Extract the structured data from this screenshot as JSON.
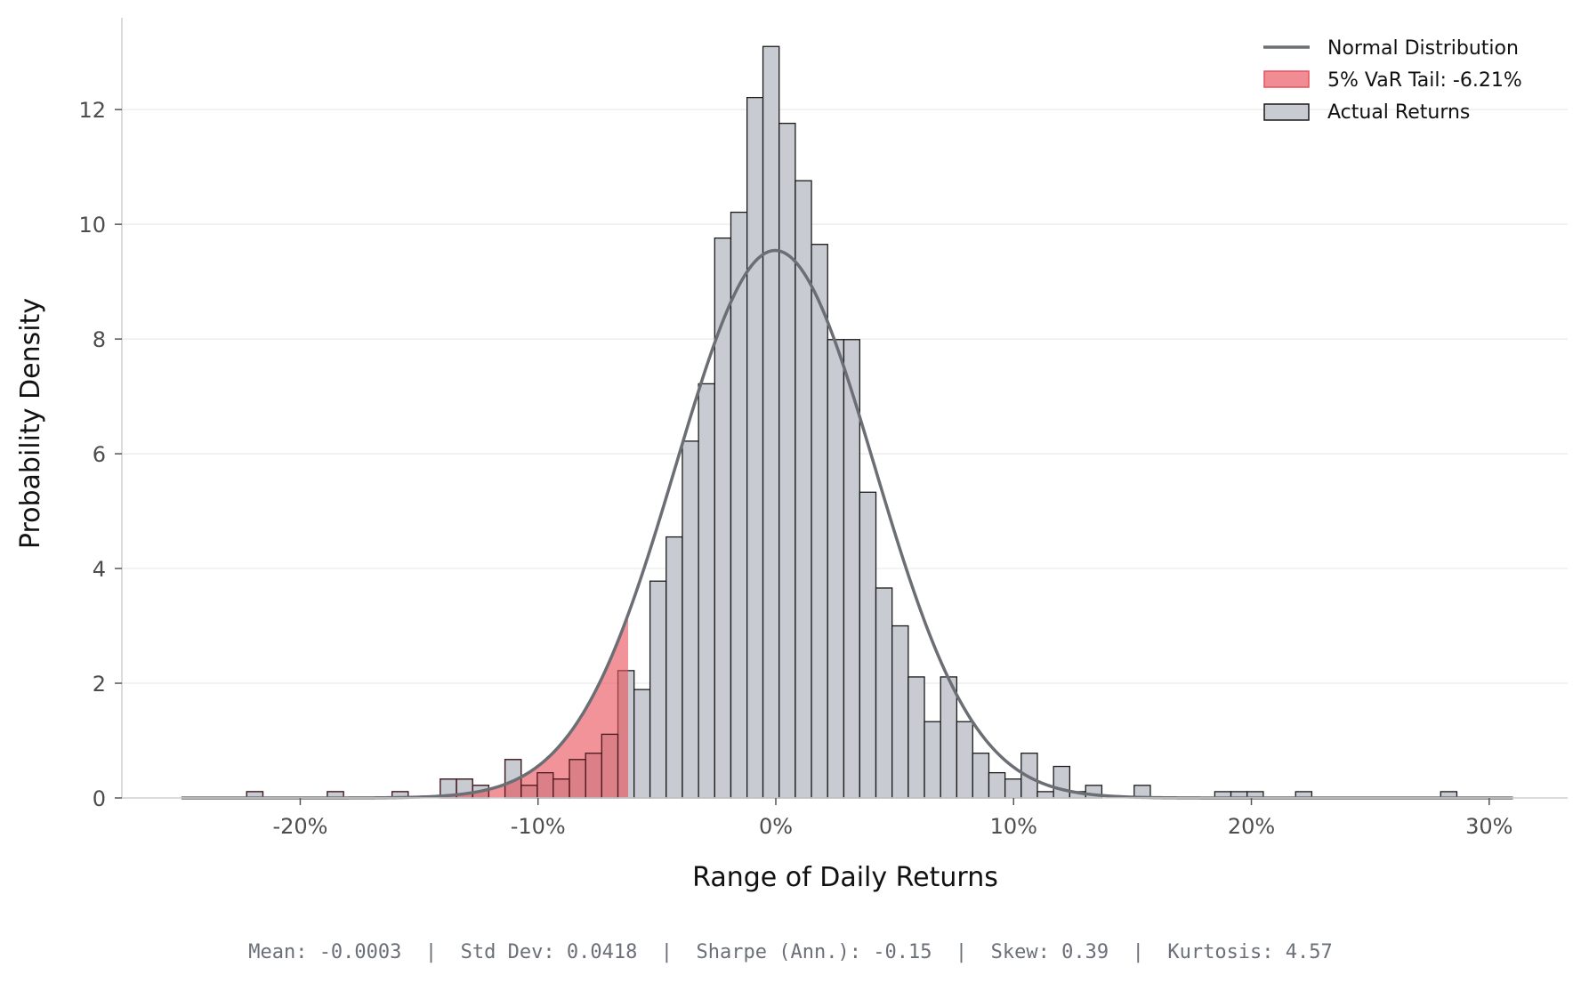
{
  "chart_data": {
    "type": "bar",
    "title": "",
    "xlabel": "Range of Daily Returns",
    "ylabel": "Probability Density",
    "xlim": [
      -0.275,
      0.333
    ],
    "ylim": [
      0,
      13.6
    ],
    "x_ticks": [
      -0.2,
      -0.1,
      0,
      0.1,
      0.2,
      0.3
    ],
    "x_tick_labels": [
      "-20%",
      "-10%",
      "0%",
      "10%",
      "20%",
      "30%"
    ],
    "y_ticks": [
      0,
      2,
      4,
      6,
      8,
      10,
      12
    ],
    "y_tick_labels": [
      "0",
      "2",
      "4",
      "6",
      "8",
      "10",
      "12"
    ],
    "grid": "horizontal",
    "legend_position": "top-right",
    "histogram": {
      "name": "Actual Returns",
      "color": "#c8ccd2",
      "edge_color": "#1a1a1a",
      "bins": [
        {
          "x0": -0.2225,
          "x1": -0.2157,
          "density": 0.11
        },
        {
          "x0": -0.1886,
          "x1": -0.1818,
          "density": 0.11
        },
        {
          "x0": -0.1614,
          "x1": -0.1546,
          "density": 0.11
        },
        {
          "x0": -0.1411,
          "x1": -0.1343,
          "density": 0.33
        },
        {
          "x0": -0.1343,
          "x1": -0.1275,
          "density": 0.33
        },
        {
          "x0": -0.1275,
          "x1": -0.1207,
          "density": 0.22
        },
        {
          "x0": -0.1139,
          "x1": -0.1071,
          "density": 0.67
        },
        {
          "x0": -0.1071,
          "x1": -0.1003,
          "density": 0.22
        },
        {
          "x0": -0.1003,
          "x1": -0.0936,
          "density": 0.44
        },
        {
          "x0": -0.0936,
          "x1": -0.0868,
          "density": 0.33
        },
        {
          "x0": -0.0868,
          "x1": -0.08,
          "density": 0.67
        },
        {
          "x0": -0.08,
          "x1": -0.0732,
          "density": 0.78
        },
        {
          "x0": -0.0732,
          "x1": -0.0664,
          "density": 1.11
        },
        {
          "x0": -0.0664,
          "x1": -0.0596,
          "density": 2.22
        },
        {
          "x0": -0.0596,
          "x1": -0.0529,
          "density": 1.89
        },
        {
          "x0": -0.0529,
          "x1": -0.0461,
          "density": 3.78
        },
        {
          "x0": -0.0461,
          "x1": -0.0393,
          "density": 4.55
        },
        {
          "x0": -0.0393,
          "x1": -0.0325,
          "density": 6.22
        },
        {
          "x0": -0.0325,
          "x1": -0.0257,
          "density": 7.22
        },
        {
          "x0": -0.0257,
          "x1": -0.0189,
          "density": 9.76
        },
        {
          "x0": -0.0189,
          "x1": -0.0121,
          "density": 10.21
        },
        {
          "x0": -0.0121,
          "x1": -0.0054,
          "density": 12.21
        },
        {
          "x0": -0.0054,
          "x1": 0.0014,
          "density": 13.1
        },
        {
          "x0": 0.0014,
          "x1": 0.0082,
          "density": 11.76
        },
        {
          "x0": 0.0082,
          "x1": 0.015,
          "density": 10.76
        },
        {
          "x0": 0.015,
          "x1": 0.0218,
          "density": 9.65
        },
        {
          "x0": 0.0218,
          "x1": 0.0286,
          "density": 7.99
        },
        {
          "x0": 0.0286,
          "x1": 0.0353,
          "density": 7.99
        },
        {
          "x0": 0.0353,
          "x1": 0.0421,
          "density": 5.33
        },
        {
          "x0": 0.0421,
          "x1": 0.0489,
          "density": 3.66
        },
        {
          "x0": 0.0489,
          "x1": 0.0557,
          "density": 3.0
        },
        {
          "x0": 0.0557,
          "x1": 0.0625,
          "density": 2.11
        },
        {
          "x0": 0.0625,
          "x1": 0.0693,
          "density": 1.33
        },
        {
          "x0": 0.0693,
          "x1": 0.0761,
          "density": 2.11
        },
        {
          "x0": 0.0761,
          "x1": 0.0828,
          "density": 1.33
        },
        {
          "x0": 0.0828,
          "x1": 0.0896,
          "density": 0.78
        },
        {
          "x0": 0.0896,
          "x1": 0.0964,
          "density": 0.44
        },
        {
          "x0": 0.0964,
          "x1": 0.1032,
          "density": 0.33
        },
        {
          "x0": 0.1032,
          "x1": 0.11,
          "density": 0.78
        },
        {
          "x0": 0.11,
          "x1": 0.1168,
          "density": 0.11
        },
        {
          "x0": 0.1168,
          "x1": 0.1236,
          "density": 0.55
        },
        {
          "x0": 0.1236,
          "x1": 0.1303,
          "density": 0.11
        },
        {
          "x0": 0.1303,
          "x1": 0.1371,
          "density": 0.22
        },
        {
          "x0": 0.1507,
          "x1": 0.1575,
          "density": 0.22
        },
        {
          "x0": 0.1846,
          "x1": 0.1914,
          "density": 0.11
        },
        {
          "x0": 0.1914,
          "x1": 0.1982,
          "density": 0.11
        },
        {
          "x0": 0.1982,
          "x1": 0.205,
          "density": 0.11
        },
        {
          "x0": 0.2186,
          "x1": 0.2254,
          "density": 0.11
        },
        {
          "x0": 0.2796,
          "x1": 0.2864,
          "density": 0.11
        }
      ]
    },
    "normal_curve": {
      "name": "Normal Distribution",
      "color": "#6b6e74",
      "mean": -0.0003,
      "std": 0.0418,
      "x_range": [
        -0.25,
        0.31
      ]
    },
    "var_tail": {
      "name": "5% VaR Tail: -6.21%",
      "threshold": -0.0621,
      "color": "#e8505b"
    },
    "stats_text": "Mean: -0.0003  |  Std Dev: 0.0418  |  Sharpe (Ann.): -0.15  |  Skew: 0.39  |  Kurtosis: 4.57"
  }
}
